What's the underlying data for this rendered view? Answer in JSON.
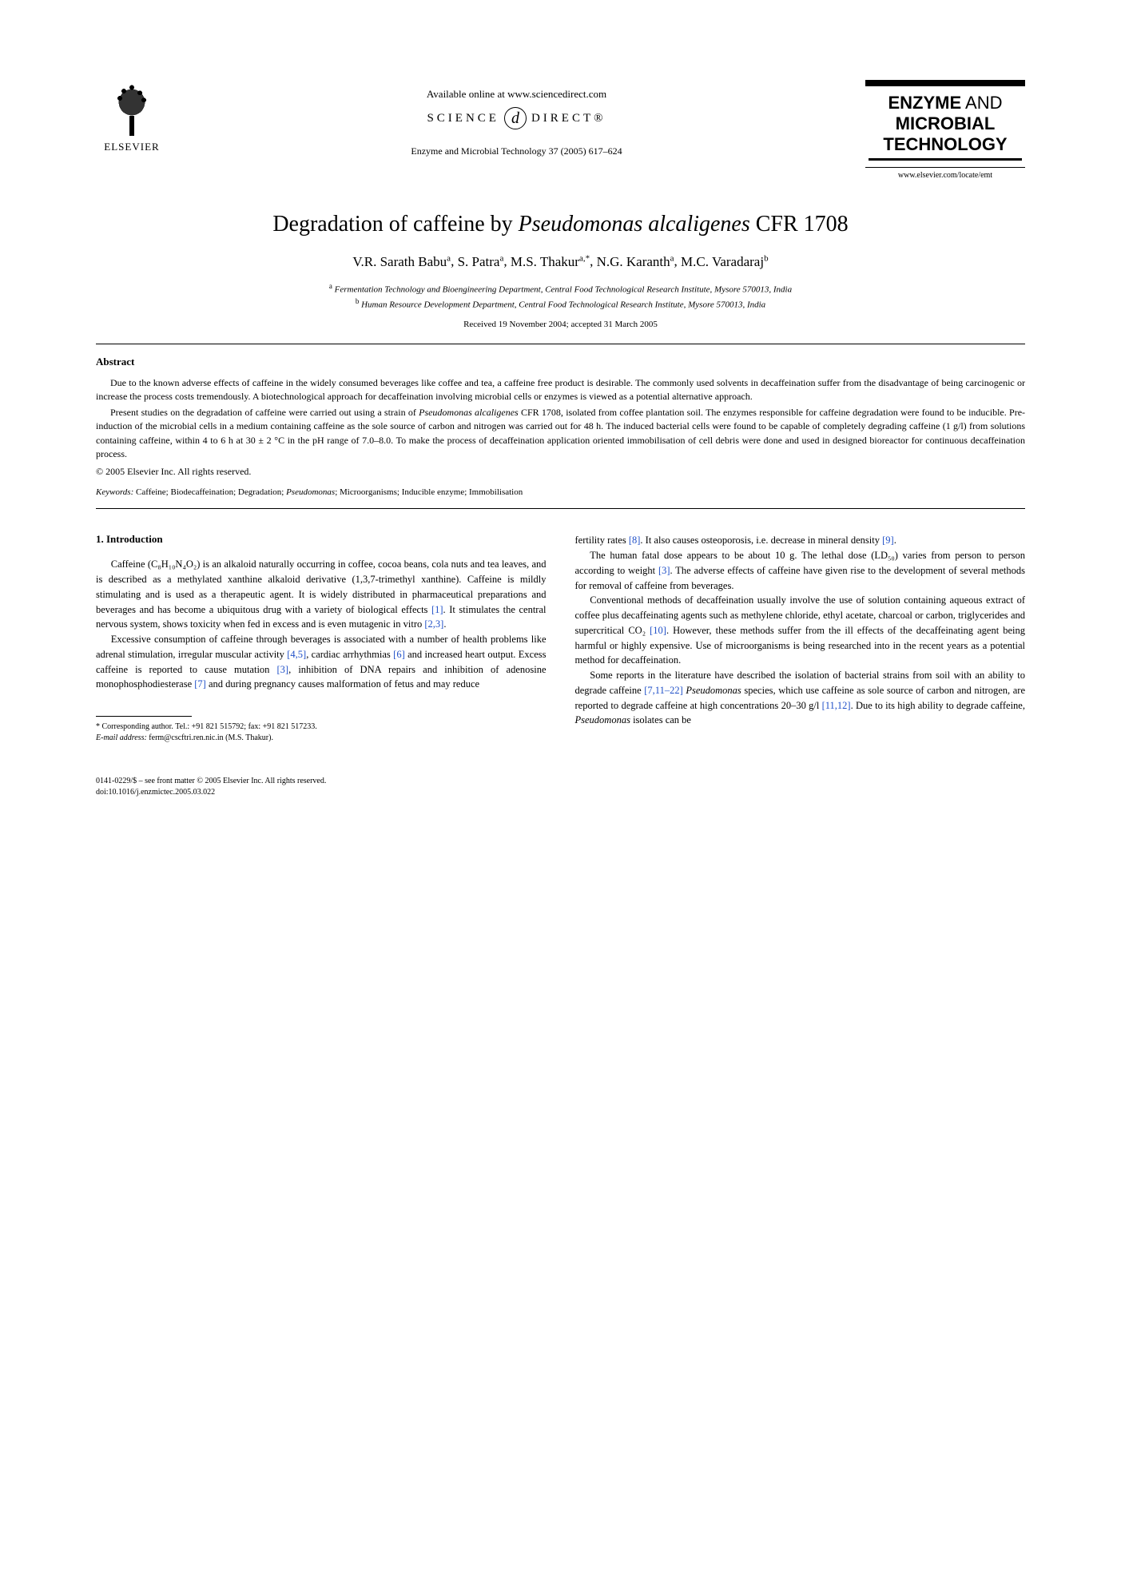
{
  "header": {
    "publisher": "ELSEVIER",
    "available_at": "Available online at www.sciencedirect.com",
    "sd_left": "SCIENCE",
    "sd_glyph": "d",
    "sd_right": "DIRECT®",
    "journal_ref": "Enzyme and Microbial Technology 37 (2005) 617–624",
    "journal_box_l1_a": "ENZYME",
    "journal_box_l1_b": " AND",
    "journal_box_l2": "MICROBIAL",
    "journal_box_l3": "TECHNOLOGY",
    "journal_url": "www.elsevier.com/locate/emt"
  },
  "title": {
    "pre": "Degradation of caffeine by ",
    "species": "Pseudomonas alcaligenes",
    "post": " CFR 1708"
  },
  "authors": {
    "a1_name": "V.R. Sarath Babu",
    "a1_sup": "a",
    "a2_name": "S. Patra",
    "a2_sup": "a",
    "a3_name": "M.S. Thakur",
    "a3_sup": "a,",
    "a3_star": "*",
    "a4_name": "N.G. Karanth",
    "a4_sup": "a",
    "a5_name": "M.C. Varadaraj",
    "a5_sup": "b"
  },
  "affiliations": {
    "a_sup": "a",
    "a_text": " Fermentation Technology and Bioengineering Department, Central Food Technological Research Institute, Mysore 570013, India",
    "b_sup": "b",
    "b_text": " Human Resource Development Department, Central Food Technological Research Institute, Mysore 570013, India"
  },
  "dates": "Received 19 November 2004; accepted 31 March 2005",
  "abstract": {
    "heading": "Abstract",
    "p1": "Due to the known adverse effects of caffeine in the widely consumed beverages like coffee and tea, a caffeine free product is desirable. The commonly used solvents in decaffeination suffer from the disadvantage of being carcinogenic or increase the process costs tremendously. A biotechnological approach for decaffeination involving microbial cells or enzymes is viewed as a potential alternative approach.",
    "p2_a": "Present studies on the degradation of caffeine were carried out using a strain of ",
    "p2_species": "Pseudomonas alcaligenes",
    "p2_b": " CFR 1708, isolated from coffee plantation soil. The enzymes responsible for caffeine degradation were found to be inducible. Pre-induction of the microbial cells in a medium containing caffeine as the sole source of carbon and nitrogen was carried out for 48 h. The induced bacterial cells were found to be capable of completely degrading caffeine (1 g/l) from solutions containing caffeine, within 4 to 6 h at 30 ± 2 °C in the pH range of 7.0–8.0. To make the process of decaffeination application oriented immobilisation of cell debris were done and used in designed bioreactor for continuous decaffeination process.",
    "copyright": "© 2005 Elsevier Inc. All rights reserved.",
    "keywords_label": "Keywords:",
    "keywords_a": "  Caffeine; Biodecaffeination; Degradation; ",
    "keywords_species": "Pseudomonas",
    "keywords_b": "; Microorganisms; Inducible enzyme; Immobilisation"
  },
  "intro": {
    "heading": "1.  Introduction",
    "p1_a": "Caffeine (C₈H₁₀N₄O₂) is an alkaloid naturally occurring in coffee, cocoa beans, cola nuts and tea leaves, and is described as a methylated xanthine alkaloid derivative (1,3,7-trimethyl xanthine). Caffeine is mildly stimulating and is used as a therapeutic agent. It is widely distributed in pharmaceutical preparations and beverages and has become a ubiquitous drug with a variety of biological effects ",
    "p1_c1": "[1]",
    "p1_b": ". It stimulates the central nervous system, shows toxicity when fed in excess and is even mutagenic in vitro ",
    "p1_c2": "[2,3]",
    "p1_c": ".",
    "p2_a": "Excessive consumption of caffeine through beverages is associated with a number of health problems like adrenal stimulation, irregular muscular activity ",
    "p2_c1": "[4,5]",
    "p2_b": ", cardiac arrhythmias ",
    "p2_c2": "[6]",
    "p2_c": " and increased heart output. Excess caffeine is reported to cause mutation ",
    "p2_c3": "[3]",
    "p2_d": ", inhibition of DNA repairs and inhibition of adenosine monophosphodiesterase ",
    "p2_c4": "[7]",
    "p2_e": " and during pregnancy causes malformation of fetus and may reduce ",
    "p3_a": "fertility rates ",
    "p3_c1": "[8]",
    "p3_b": ". It also causes osteoporosis, i.e. decrease in mineral density ",
    "p3_c2": "[9]",
    "p3_c": ".",
    "p4_a": "The human fatal dose appears to be about 10 g. The lethal dose (LD₅₀) varies from person to person according to weight ",
    "p4_c1": "[3]",
    "p4_b": ". The adverse effects of caffeine have given rise to the development of several methods for removal of caffeine from beverages.",
    "p5_a": "Conventional methods of decaffeination usually involve the use of solution containing aqueous extract of coffee plus decaffeinating agents such as methylene chloride, ethyl acetate, charcoal or carbon, triglycerides and supercritical CO₂ ",
    "p5_c1": "[10]",
    "p5_b": ". However, these methods suffer from the ill effects of the decaffeinating agent being harmful or highly expensive. Use of microorganisms is being researched into in the recent years as a potential method for decaffeination.",
    "p6_a": "Some reports in the literature have described the isolation of bacterial strains from soil with an ability to degrade caffeine ",
    "p6_c1": "[7,11–22]",
    "p6_b": " ",
    "p6_species": "Pseudomonas",
    "p6_c": " species, which use caffeine as sole source of carbon and nitrogen, are reported to degrade caffeine at high concentrations 20–30 g/l ",
    "p6_c2": "[11,12]",
    "p6_d": ". Due to its high ability to degrade caffeine, ",
    "p6_species2": "Pseudomonas",
    "p6_e": " isolates can be"
  },
  "footnote": {
    "corr_label": "* Corresponding author. Tel.: +91 821 515792; fax: +91 821 517233.",
    "email_label": "E-mail address:",
    "email": " ferm@cscftri.ren.nic.in (M.S. Thakur)."
  },
  "doi": {
    "line1": "0141-0229/$ – see front matter © 2005 Elsevier Inc. All rights reserved.",
    "line2": "doi:10.1016/j.enzmictec.2005.03.022"
  }
}
